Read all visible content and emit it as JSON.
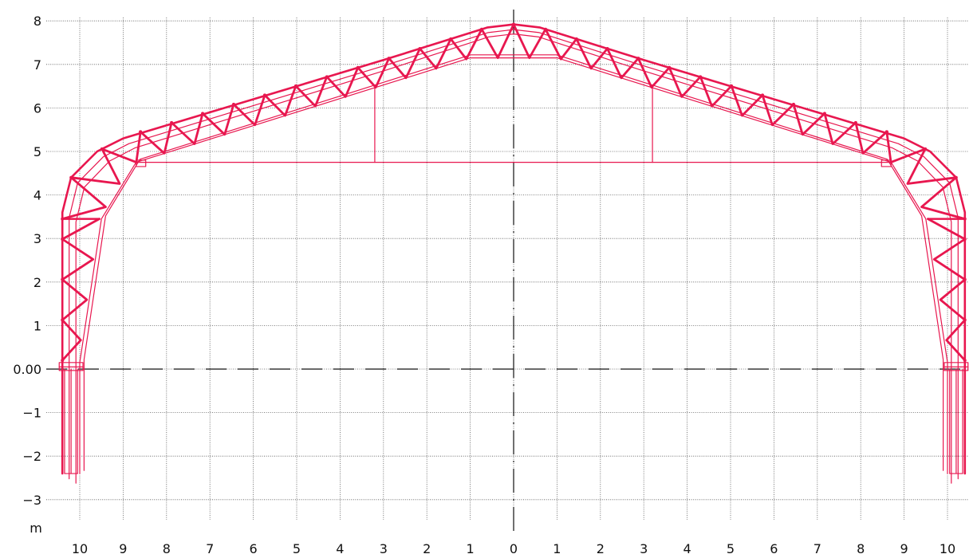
{
  "axes": {
    "y_ticks": [
      {
        "value": 8,
        "label": "8"
      },
      {
        "value": 7,
        "label": "7"
      },
      {
        "value": 6,
        "label": "6"
      },
      {
        "value": 5,
        "label": "5"
      },
      {
        "value": 4,
        "label": "4"
      },
      {
        "value": 3,
        "label": "3"
      },
      {
        "value": 2,
        "label": "2"
      },
      {
        "value": 1,
        "label": "1"
      },
      {
        "value": 0,
        "label": "0.00"
      },
      {
        "value": -1,
        "label": "−1"
      },
      {
        "value": -2,
        "label": "−2"
      },
      {
        "value": -3,
        "label": "−3"
      }
    ],
    "x_ticks": [
      {
        "value": -10,
        "label": "10"
      },
      {
        "value": -9,
        "label": "9"
      },
      {
        "value": -8,
        "label": "8"
      },
      {
        "value": -7,
        "label": "7"
      },
      {
        "value": -6,
        "label": "6"
      },
      {
        "value": -5,
        "label": "5"
      },
      {
        "value": -4,
        "label": "4"
      },
      {
        "value": -3,
        "label": "3"
      },
      {
        "value": -2,
        "label": "2"
      },
      {
        "value": -1,
        "label": "1"
      },
      {
        "value": 0,
        "label": "0"
      },
      {
        "value": 1,
        "label": "1"
      },
      {
        "value": 2,
        "label": "2"
      },
      {
        "value": 3,
        "label": "3"
      },
      {
        "value": 4,
        "label": "4"
      },
      {
        "value": 5,
        "label": "5"
      },
      {
        "value": 6,
        "label": "6"
      },
      {
        "value": 7,
        "label": "7"
      },
      {
        "value": 8,
        "label": "8"
      },
      {
        "value": 9,
        "label": "9"
      },
      {
        "value": 10,
        "label": "10"
      }
    ],
    "unit_label": "m"
  },
  "structure": {
    "color": "#e8174f",
    "outer_chord": [
      [
        -10.4,
        -2.4
      ],
      [
        -10.4,
        3.6
      ],
      [
        -10.2,
        4.4
      ],
      [
        -9.6,
        5.0
      ],
      [
        -9.0,
        5.3
      ],
      [
        -7.0,
        5.9
      ],
      [
        -3.0,
        7.1
      ],
      [
        -0.6,
        7.85
      ],
      [
        0,
        7.92
      ],
      [
        0.6,
        7.85
      ],
      [
        3.0,
        7.1
      ],
      [
        7.0,
        5.9
      ],
      [
        9.0,
        5.3
      ],
      [
        9.6,
        5.0
      ],
      [
        10.2,
        4.4
      ],
      [
        10.4,
        3.6
      ],
      [
        10.4,
        -2.4
      ]
    ],
    "inner_chord": [
      [
        -10.0,
        -2.4
      ],
      [
        -10.0,
        0.15
      ],
      [
        -9.5,
        3.45
      ],
      [
        -8.7,
        4.75
      ],
      [
        -1.0,
        7.15
      ],
      [
        1.0,
        7.15
      ],
      [
        8.7,
        4.75
      ],
      [
        9.5,
        3.45
      ],
      [
        10.0,
        0.15
      ],
      [
        10.0,
        -2.4
      ]
    ],
    "tie_beam": [
      [
        -8.7,
        4.75
      ],
      [
        8.7,
        4.75
      ]
    ],
    "hangers": [
      [
        [
          -3.2,
          4.75
        ],
        [
          -3.2,
          6.5
        ]
      ],
      [
        [
          3.2,
          4.75
        ],
        [
          3.2,
          6.5
        ]
      ]
    ]
  }
}
